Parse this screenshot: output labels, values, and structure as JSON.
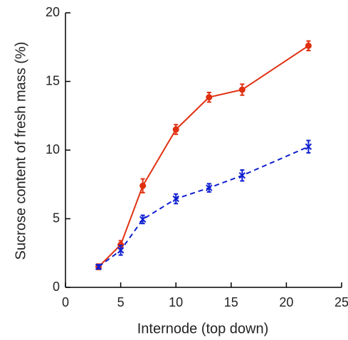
{
  "chart_data": {
    "type": "line",
    "x_label": "Internode (top down)",
    "y_label": "Sucrose content of fresh mass (%)",
    "x": [
      3,
      5,
      7,
      10,
      13,
      16,
      22
    ],
    "series": [
      {
        "color": "#e03010",
        "marker": "circle",
        "dashed": false,
        "values": [
          1.5,
          3.1,
          7.4,
          11.5,
          13.85,
          14.4,
          17.6
        ],
        "errors": [
          0.2,
          0.3,
          0.5,
          0.35,
          0.35,
          0.4,
          0.35
        ]
      },
      {
        "color": "#1020d0",
        "marker": "x",
        "dashed": true,
        "values": [
          1.5,
          2.7,
          4.95,
          6.45,
          7.25,
          8.15,
          10.25
        ],
        "errors": [
          0.15,
          0.35,
          0.3,
          0.35,
          0.3,
          0.4,
          0.45
        ]
      }
    ],
    "xlim": [
      0,
      25
    ],
    "xticks": [
      0,
      5,
      10,
      15,
      20,
      25
    ],
    "ylim": [
      0,
      20
    ],
    "yticks": [
      0,
      5,
      10,
      15,
      20
    ]
  }
}
